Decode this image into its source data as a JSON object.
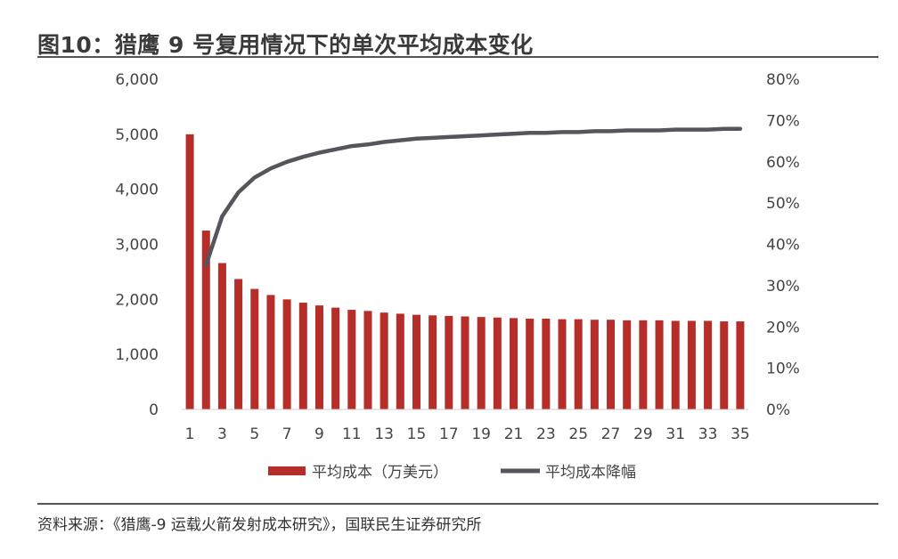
{
  "figure": {
    "title": "图10：猎鹰 9 号复用情况下的单次平均成本变化",
    "source": "资料来源：《猎鹰-9 运载火箭发射成本研究》，国联民生证券研究所"
  },
  "colors": {
    "bar": "#b52e2a",
    "line": "#54565c",
    "text": "#444444"
  },
  "chart_data": {
    "type": "bar+line",
    "title": "",
    "x": [
      1,
      2,
      3,
      4,
      5,
      6,
      7,
      8,
      9,
      10,
      11,
      12,
      13,
      14,
      15,
      16,
      17,
      18,
      19,
      20,
      21,
      22,
      23,
      24,
      25,
      26,
      27,
      28,
      29,
      30,
      31,
      32,
      33,
      34,
      35
    ],
    "x_tick_labels": [
      "1",
      "3",
      "5",
      "7",
      "9",
      "11",
      "13",
      "15",
      "17",
      "19",
      "21",
      "23",
      "25",
      "27",
      "29",
      "31",
      "33",
      "35"
    ],
    "y_left": {
      "range": [
        0,
        6000
      ],
      "tick_labels": [
        "0",
        "1,000",
        "2,000",
        "3,000",
        "4,000",
        "5,000",
        "6,000"
      ]
    },
    "y_right": {
      "range": [
        0,
        0.8
      ],
      "tick_labels": [
        "0%",
        "10%",
        "20%",
        "30%",
        "40%",
        "50%",
        "60%",
        "70%",
        "80%"
      ]
    },
    "series": [
      {
        "name": "平均成本（万美元）",
        "type": "bar",
        "axis": "left",
        "values": [
          5000,
          3250,
          2660,
          2370,
          2190,
          2080,
          2000,
          1940,
          1890,
          1850,
          1810,
          1790,
          1760,
          1740,
          1720,
          1710,
          1700,
          1690,
          1680,
          1670,
          1660,
          1650,
          1650,
          1640,
          1640,
          1630,
          1630,
          1620,
          1620,
          1620,
          1610,
          1610,
          1610,
          1600,
          1600
        ]
      },
      {
        "name": "平均成本降幅",
        "type": "line",
        "axis": "right",
        "values": [
          null,
          0.35,
          0.468,
          0.526,
          0.562,
          0.584,
          0.6,
          0.612,
          0.622,
          0.63,
          0.638,
          0.642,
          0.648,
          0.652,
          0.656,
          0.658,
          0.66,
          0.662,
          0.664,
          0.666,
          0.668,
          0.67,
          0.67,
          0.672,
          0.672,
          0.674,
          0.674,
          0.676,
          0.676,
          0.676,
          0.678,
          0.678,
          0.678,
          0.68,
          0.68
        ]
      }
    ],
    "legend_position": "bottom"
  }
}
